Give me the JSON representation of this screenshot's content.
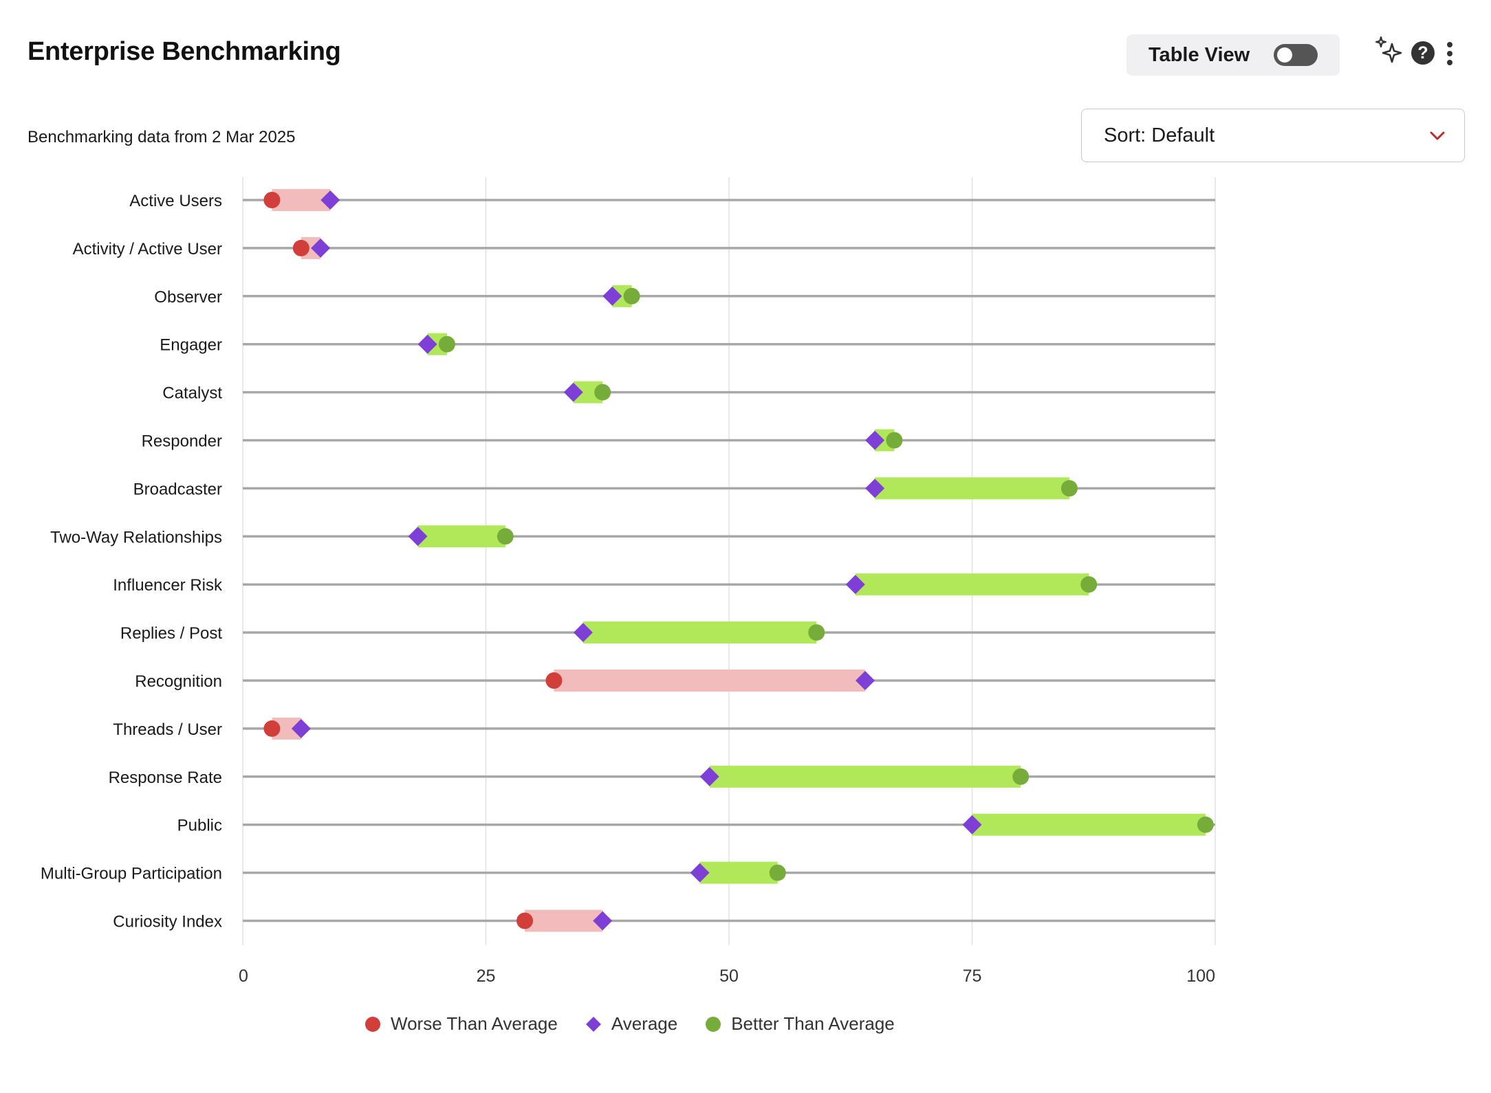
{
  "header": {
    "title": "Enterprise Benchmarking",
    "table_view_label": "Table View",
    "table_view_on": false,
    "help_symbol": "?"
  },
  "icons": [
    "sparkle-icon",
    "help-icon",
    "more-vertical-icon",
    "chevron-down-icon"
  ],
  "subtitle": "Benchmarking data from 2 Mar 2025",
  "sort": {
    "label": "Sort: Default"
  },
  "colors": {
    "worse": "#d23f3a",
    "worse_bar": "#f3bcbc",
    "average": "#7e3fd6",
    "better": "#76ad3a",
    "better_bar": "#b0e85a",
    "axis_line": "#a8a8a8",
    "grid": "#e2e2e2",
    "chevron": "#c0282d"
  },
  "chart_data": {
    "type": "dumbbell",
    "xlim": [
      0,
      100
    ],
    "xticks": [
      0,
      25,
      50,
      75,
      100
    ],
    "grid": true,
    "legend_position": "bottom",
    "legend": [
      {
        "key": "worse",
        "label": "Worse Than Average"
      },
      {
        "key": "average",
        "label": "Average"
      },
      {
        "key": "better",
        "label": "Better Than Average"
      }
    ],
    "rows": [
      {
        "label": "Active Users",
        "value": 3,
        "average": 9
      },
      {
        "label": "Activity / Active User",
        "value": 6,
        "average": 8
      },
      {
        "label": "Observer",
        "value": 40,
        "average": 38
      },
      {
        "label": "Engager",
        "value": 21,
        "average": 19
      },
      {
        "label": "Catalyst",
        "value": 37,
        "average": 34
      },
      {
        "label": "Responder",
        "value": 67,
        "average": 65
      },
      {
        "label": "Broadcaster",
        "value": 85,
        "average": 65
      },
      {
        "label": "Two-Way Relationships",
        "value": 27,
        "average": 18
      },
      {
        "label": "Influencer Risk",
        "value": 87,
        "average": 63
      },
      {
        "label": "Replies / Post",
        "value": 59,
        "average": 35
      },
      {
        "label": "Recognition",
        "value": 32,
        "average": 64
      },
      {
        "label": "Threads / User",
        "value": 3,
        "average": 6
      },
      {
        "label": "Response Rate",
        "value": 80,
        "average": 48
      },
      {
        "label": "Public",
        "value": 99,
        "average": 75
      },
      {
        "label": "Multi-Group Participation",
        "value": 55,
        "average": 47
      },
      {
        "label": "Curiosity Index",
        "value": 29,
        "average": 37
      }
    ]
  }
}
